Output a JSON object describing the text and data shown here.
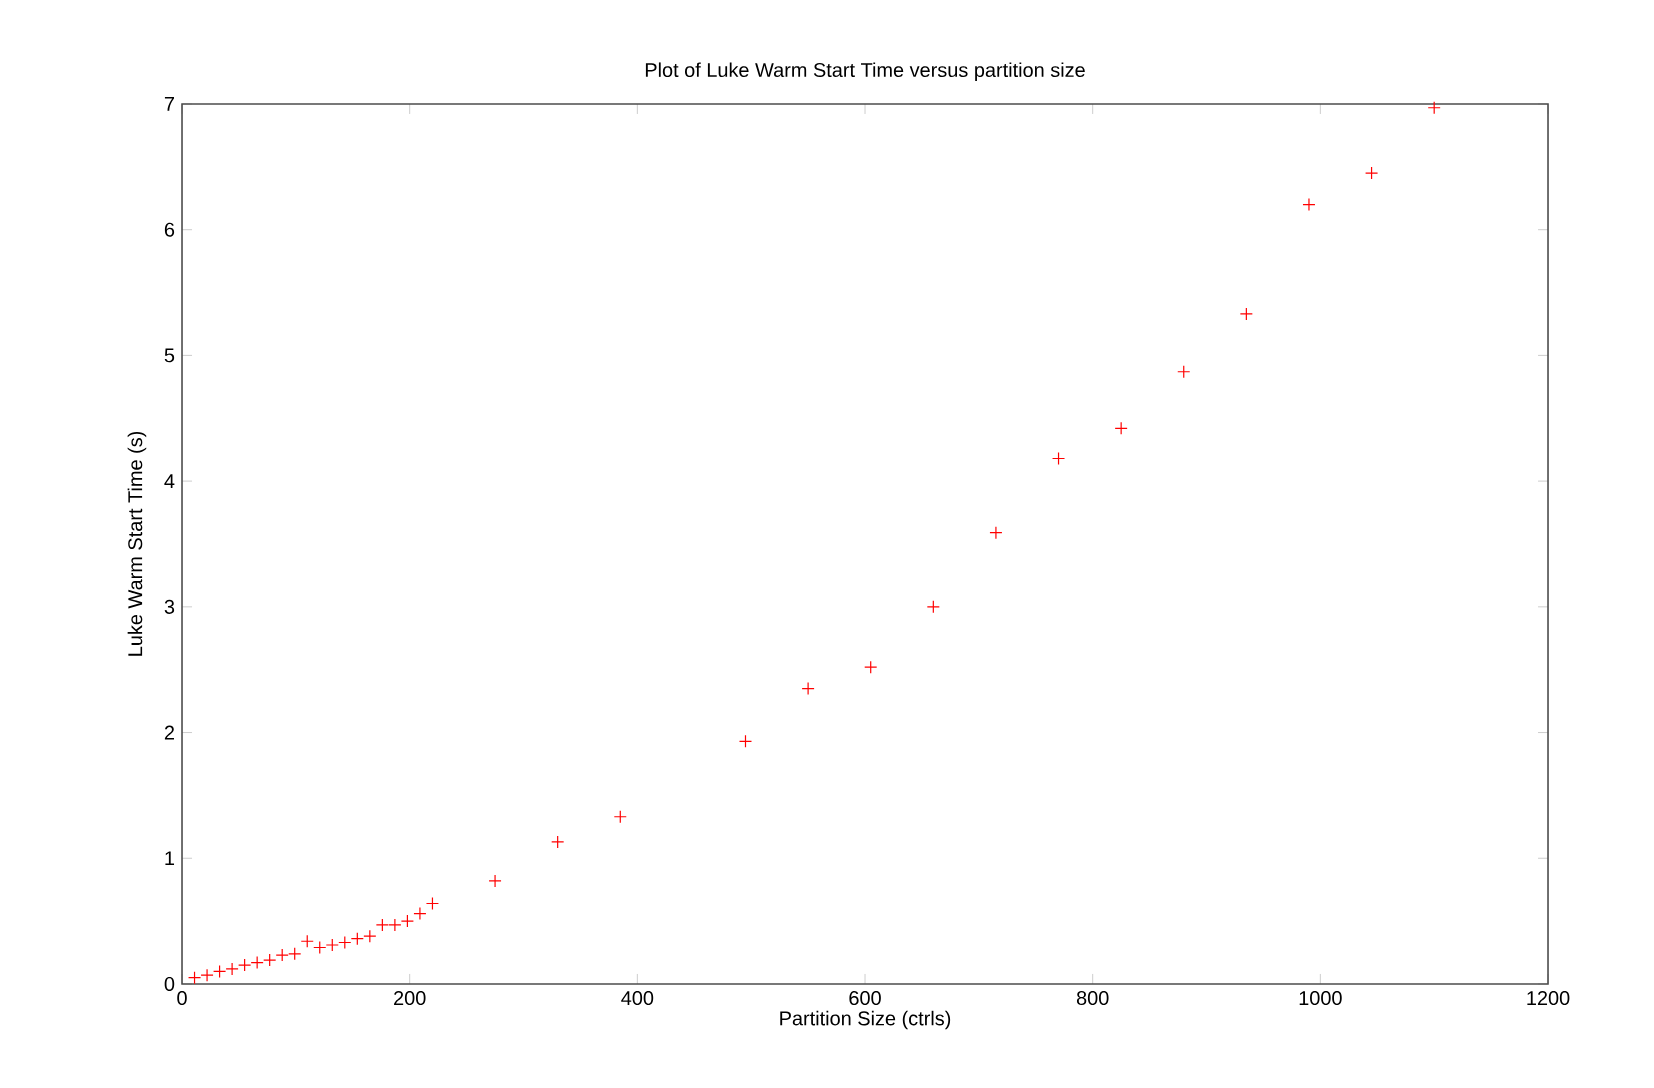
{
  "chart_data": {
    "type": "scatter",
    "title": "Plot of Luke Warm Start Time versus partition size",
    "xlabel": "Partition Size (ctrls)",
    "ylabel": "Luke Warm Start Time (s)",
    "x": [
      11,
      22,
      33,
      44,
      55,
      66,
      77,
      88,
      99,
      110,
      121,
      132,
      143,
      154,
      165,
      176,
      187,
      198,
      209,
      220,
      275,
      330,
      385,
      495,
      550,
      605,
      660,
      715,
      770,
      825,
      880,
      935,
      990,
      1045,
      1100
    ],
    "series": [
      {
        "color": "#ff0000",
        "values": [
          0.05,
          0.07,
          0.1,
          0.12,
          0.15,
          0.17,
          0.19,
          0.23,
          0.24,
          0.34,
          0.29,
          0.31,
          0.33,
          0.36,
          0.38,
          0.47,
          0.47,
          0.5,
          0.56,
          0.64,
          0.82,
          1.13,
          1.33,
          1.93,
          2.35,
          2.52,
          3.0,
          3.59,
          4.18,
          4.42,
          4.87,
          5.33,
          6.2,
          6.45,
          6.97
        ]
      }
    ],
    "xlim": [
      0,
      1200
    ],
    "ylim": [
      0,
      7
    ],
    "xticks": [
      0,
      200,
      400,
      600,
      800,
      1000,
      1200
    ],
    "yticks": [
      0,
      1,
      2,
      3,
      4,
      5,
      6,
      7
    ],
    "marker": "cross"
  }
}
